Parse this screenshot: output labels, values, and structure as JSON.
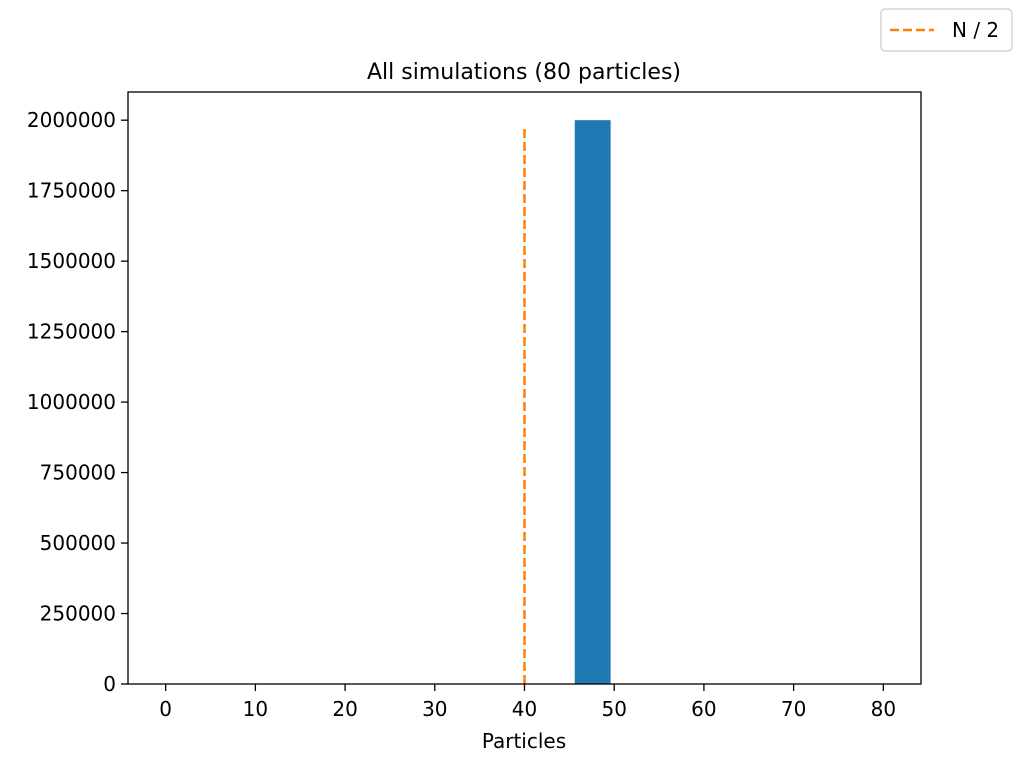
{
  "chart_data": {
    "type": "bar",
    "title": "All simulations (80 particles)",
    "xlabel": "Particles",
    "ylabel": "",
    "xlim": [
      -4.2,
      84.2
    ],
    "ylim": [
      0,
      2100000
    ],
    "xticks": [
      0,
      10,
      20,
      30,
      40,
      50,
      60,
      70,
      80
    ],
    "xtick_labels": [
      "0",
      "10",
      "20",
      "30",
      "40",
      "50",
      "60",
      "70",
      "80"
    ],
    "yticks": [
      0,
      250000,
      500000,
      750000,
      1000000,
      1250000,
      1500000,
      1750000,
      2000000
    ],
    "ytick_labels": [
      "0",
      "250000",
      "500000",
      "750000",
      "1000000",
      "1250000",
      "1500000",
      "1750000",
      "2000000"
    ],
    "grid": false,
    "bars": [
      {
        "x_start": 45.6,
        "x_end": 49.6,
        "value": 2000000
      }
    ],
    "reference_line": {
      "x": 40,
      "y_range": [
        0,
        1980000
      ],
      "label": "N / 2",
      "style": "dashed"
    },
    "legend": {
      "placement": "top-right",
      "entries": [
        "N / 2"
      ]
    },
    "colors": {
      "bar": "#1f77b4",
      "reference_line": "#ff7f0e"
    }
  }
}
